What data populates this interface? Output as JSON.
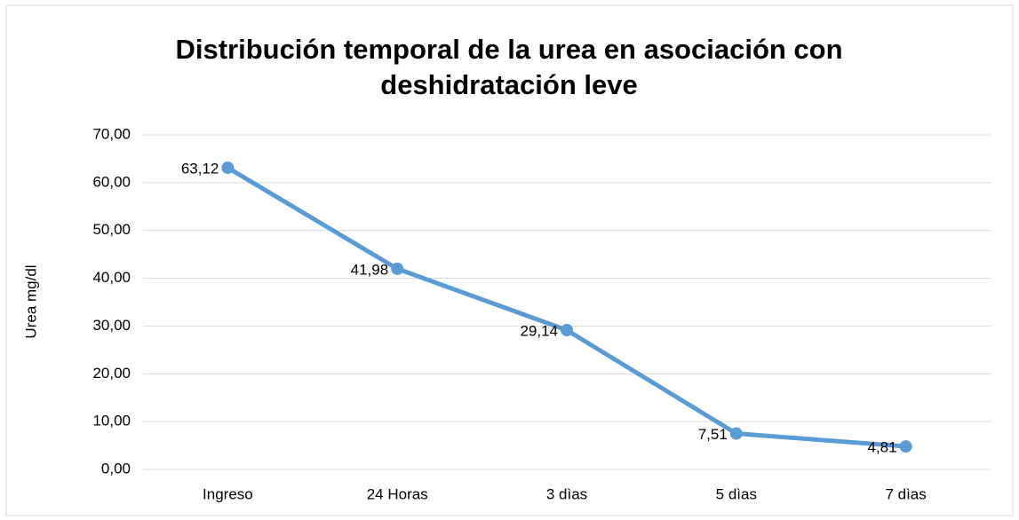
{
  "chart_data": {
    "type": "line",
    "title": "Distribución temporal de la urea en asociación con deshidratación leve",
    "y_label": "Urea mg/dl",
    "categories": [
      "Ingreso",
      "24 Horas",
      "3 dìas",
      "5 dìas",
      "7 dìas"
    ],
    "series": [
      {
        "name": "Urea",
        "color": "#5b9bd5",
        "values": [
          63.12,
          41.98,
          29.14,
          7.51,
          4.81
        ],
        "value_labels": [
          "63,12",
          "41,98",
          "29,14",
          "7,51",
          "4,81"
        ]
      }
    ],
    "ylim": [
      0,
      70
    ],
    "yticks": [
      {
        "value": 0,
        "label": "0,00"
      },
      {
        "value": 10,
        "label": "10,00"
      },
      {
        "value": 20,
        "label": "20,00"
      },
      {
        "value": 30,
        "label": "30,00"
      },
      {
        "value": 40,
        "label": "40,00"
      },
      {
        "value": 50,
        "label": "50,00"
      },
      {
        "value": 60,
        "label": "60,00"
      },
      {
        "value": 70,
        "label": "70,00"
      }
    ],
    "grid": true
  }
}
